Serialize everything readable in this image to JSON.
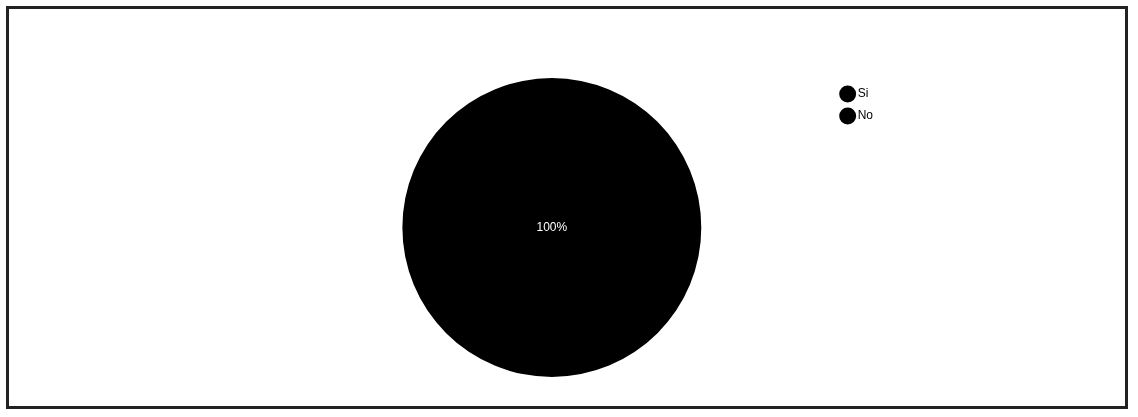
{
  "chart_data": {
    "type": "pie",
    "categories": [
      "Si",
      "No"
    ],
    "values": [
      100,
      0
    ],
    "colors": [
      "#000000",
      "#000000"
    ],
    "value_labels": [
      "100%",
      null
    ],
    "legend": "top right"
  }
}
